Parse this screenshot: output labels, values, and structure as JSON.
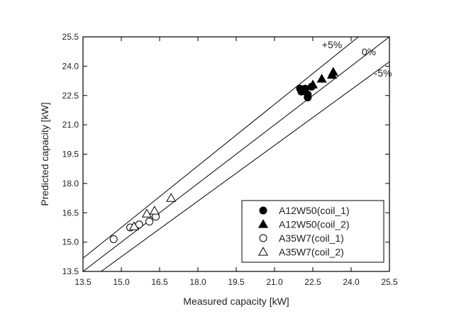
{
  "chart_data": {
    "type": "scatter",
    "title": "",
    "xlabel": "Measured capacity [kW]",
    "ylabel": "Predicted capacity [kW]",
    "xlim": [
      13.5,
      25.5
    ],
    "ylim": [
      13.5,
      25.5
    ],
    "xticks": [
      "13.5",
      "15.0",
      "16.5",
      "18.0",
      "19.5",
      "21.0",
      "22.5",
      "24.0",
      "25.5"
    ],
    "yticks": [
      "13.5",
      "15.0",
      "16.5",
      "18.0",
      "19.5",
      "21.0",
      "22.5",
      "24.0",
      "25.5"
    ],
    "reference_lines": [
      {
        "label": "+5%",
        "factor": 1.05
      },
      {
        "label": "0%",
        "factor": 1.0
      },
      {
        "label": "-5%",
        "factor": 0.95
      }
    ],
    "series": [
      {
        "name": "A12W50(coil_1)",
        "marker": "circle",
        "filled": true,
        "points": [
          [
            22.0,
            22.85
          ],
          [
            22.05,
            22.7
          ],
          [
            22.2,
            22.85
          ],
          [
            22.3,
            22.4
          ],
          [
            22.3,
            22.55
          ],
          [
            22.45,
            22.95
          ]
        ]
      },
      {
        "name": "A12W50(coil_2)",
        "marker": "triangle",
        "filled": true,
        "points": [
          [
            22.5,
            23.05
          ],
          [
            22.85,
            23.35
          ],
          [
            23.25,
            23.55
          ],
          [
            23.3,
            23.7
          ]
        ]
      },
      {
        "name": "A35W7(coil_1)",
        "marker": "circle",
        "filled": false,
        "points": [
          [
            14.7,
            15.15
          ],
          [
            15.35,
            15.75
          ],
          [
            15.7,
            15.9
          ],
          [
            16.1,
            16.05
          ],
          [
            16.35,
            16.3
          ]
        ]
      },
      {
        "name": "A35W7(coil_2)",
        "marker": "triangle",
        "filled": false,
        "points": [
          [
            15.5,
            15.8
          ],
          [
            16.0,
            16.45
          ],
          [
            16.3,
            16.6
          ],
          [
            16.95,
            17.25
          ]
        ]
      }
    ],
    "legend_position": "bottom-right"
  }
}
